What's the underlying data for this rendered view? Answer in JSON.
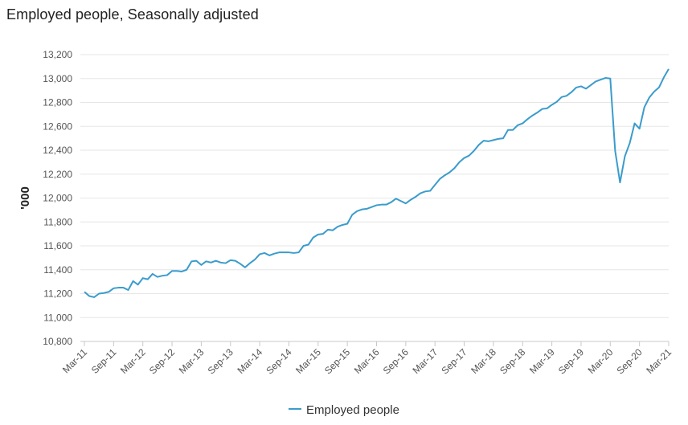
{
  "chart_data": {
    "type": "line",
    "title": "Employed people, Seasonally adjusted",
    "ylabel": "'000",
    "xlabel": "",
    "ylim": [
      10800,
      13200
    ],
    "yticks": [
      10800,
      11000,
      11200,
      11400,
      11600,
      11800,
      12000,
      12200,
      12400,
      12600,
      12800,
      13000,
      13200
    ],
    "ytick_labels": [
      "10,800",
      "11,000",
      "11,200",
      "11,400",
      "11,600",
      "11,800",
      "12,000",
      "12,200",
      "12,400",
      "12,600",
      "12,800",
      "13,000",
      "13,200"
    ],
    "xtick_labels": [
      "Mar-11",
      "Sep-11",
      "Mar-12",
      "Sep-12",
      "Mar-13",
      "Sep-13",
      "Mar-14",
      "Sep-14",
      "Mar-15",
      "Sep-15",
      "Mar-16",
      "Sep-16",
      "Mar-17",
      "Sep-17",
      "Mar-18",
      "Sep-18",
      "Mar-19",
      "Sep-19",
      "Mar-20",
      "Sep-20",
      "Mar-21"
    ],
    "grid": true,
    "legend": "bottom-center",
    "color": "#3a9ccc",
    "series": [
      {
        "name": "Employed people",
        "values": [
          11215,
          11180,
          11170,
          11200,
          11205,
          11215,
          11245,
          11250,
          11250,
          11230,
          11305,
          11275,
          11330,
          11320,
          11365,
          11340,
          11350,
          11355,
          11390,
          11390,
          11385,
          11400,
          11470,
          11475,
          11440,
          11470,
          11460,
          11475,
          11460,
          11455,
          11480,
          11475,
          11450,
          11420,
          11455,
          11485,
          11530,
          11540,
          11520,
          11535,
          11545,
          11545,
          11545,
          11540,
          11545,
          11600,
          11610,
          11670,
          11695,
          11700,
          11735,
          11730,
          11760,
          11775,
          11785,
          11860,
          11890,
          11905,
          11910,
          11925,
          11940,
          11945,
          11945,
          11965,
          11995,
          11975,
          11955,
          11985,
          12010,
          12040,
          12055,
          12060,
          12110,
          12160,
          12190,
          12215,
          12250,
          12300,
          12335,
          12355,
          12395,
          12445,
          12480,
          12475,
          12485,
          12495,
          12500,
          12570,
          12570,
          12610,
          12625,
          12660,
          12690,
          12715,
          12745,
          12750,
          12780,
          12805,
          12845,
          12855,
          12885,
          12925,
          12935,
          12915,
          12945,
          12975,
          12990,
          13005,
          13000,
          12395,
          12130,
          12350,
          12460,
          12625,
          12580,
          12760,
          12840,
          12890,
          12925,
          13010,
          13080
        ]
      }
    ]
  }
}
